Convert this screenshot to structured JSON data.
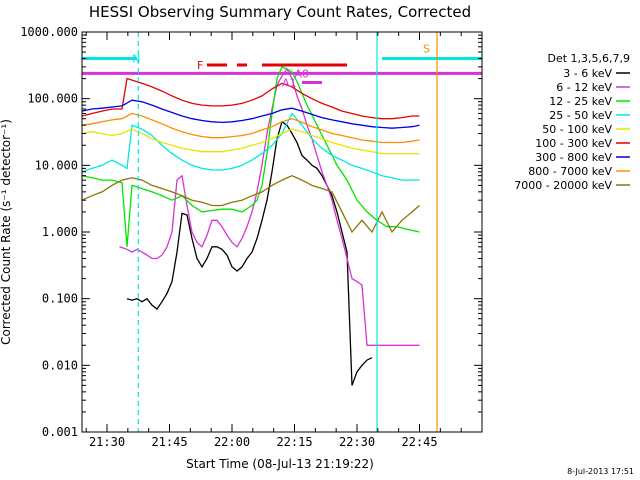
{
  "chart_data": {
    "type": "line",
    "title": "HESSI Observing Summary Count Rates, Corrected",
    "xlabel": "Start Time (08-Jul-13 21:19:22)",
    "ylabel": "Corrected Count Rate (s⁻¹ detector⁻¹)",
    "y_scale": "log",
    "ylim": [
      0.001,
      1000
    ],
    "xlim_minutes": [
      21.4,
      23.0
    ],
    "x_tick_labels": [
      "21:30",
      "21:45",
      "22:00",
      "22:15",
      "22:30",
      "22:45"
    ],
    "y_tick_labels": [
      "1000.000",
      "100.000",
      "10.000",
      "1.000",
      "0.100",
      "0.010",
      "0.001"
    ],
    "legend_header": "Det 1,3,5,6,7,9",
    "legend_placement": "right",
    "timestamp": "8-Jul-2013 17:51",
    "series": [
      {
        "name": "3 - 6 keV",
        "color": "#000000",
        "x": [
          21.58,
          21.6,
          21.62,
          21.64,
          21.66,
          21.68,
          21.7,
          21.72,
          21.74,
          21.76,
          21.78,
          21.8,
          21.82,
          21.84,
          21.86,
          21.88,
          21.9,
          21.92,
          21.94,
          21.96,
          21.98,
          22.0,
          22.02,
          22.04,
          22.06,
          22.08,
          22.1,
          22.12,
          22.14,
          22.16,
          22.18,
          22.2,
          22.22,
          22.24,
          22.26,
          22.28,
          22.3,
          22.32,
          22.34,
          22.36,
          22.38,
          22.4,
          22.42,
          22.44,
          22.46,
          22.48,
          22.5,
          22.52,
          22.54,
          22.56
        ],
        "y": [
          0.1,
          0.095,
          0.1,
          0.09,
          0.1,
          0.08,
          0.07,
          0.09,
          0.12,
          0.18,
          0.5,
          1.9,
          1.8,
          0.8,
          0.4,
          0.3,
          0.4,
          0.6,
          0.6,
          0.55,
          0.45,
          0.3,
          0.26,
          0.3,
          0.4,
          0.5,
          0.8,
          1.5,
          3,
          8,
          25,
          45,
          40,
          30,
          22,
          14,
          12,
          10,
          9,
          7,
          5,
          3.5,
          2,
          1,
          0.5,
          0.005,
          0.008,
          0.01,
          0.012,
          0.013
        ]
      },
      {
        "name": "6 - 12 keV",
        "color": "#d633d6",
        "x": [
          21.55,
          21.58,
          21.6,
          21.62,
          21.64,
          21.66,
          21.68,
          21.7,
          21.72,
          21.74,
          21.76,
          21.78,
          21.8,
          21.82,
          21.84,
          21.86,
          21.88,
          21.9,
          21.92,
          21.94,
          21.96,
          21.98,
          22.0,
          22.02,
          22.04,
          22.06,
          22.08,
          22.1,
          22.12,
          22.14,
          22.16,
          22.18,
          22.2,
          22.22,
          22.24,
          22.26,
          22.28,
          22.3,
          22.32,
          22.34,
          22.36,
          22.38,
          22.4,
          22.42,
          22.44,
          22.46,
          22.48,
          22.5,
          22.52,
          22.54,
          22.56,
          22.58,
          22.6,
          22.62,
          22.64,
          22.66,
          22.7,
          22.75
        ],
        "y": [
          0.6,
          0.55,
          0.5,
          0.55,
          0.5,
          0.45,
          0.4,
          0.4,
          0.45,
          0.6,
          1,
          6,
          7,
          2.5,
          1,
          0.7,
          0.6,
          0.9,
          1.5,
          1.5,
          1.2,
          0.9,
          0.7,
          0.6,
          0.8,
          1.2,
          2,
          4,
          10,
          30,
          70,
          160,
          220,
          280,
          200,
          110,
          70,
          40,
          25,
          14,
          8,
          5,
          3,
          1.5,
          0.8,
          0.4,
          0.2,
          0.18,
          0.16,
          0.02,
          0.02,
          0.02,
          0.02,
          0.02,
          0.02,
          0.02,
          0.02,
          0.02
        ]
      },
      {
        "name": "12 - 25 keV",
        "color": "#00e600",
        "x": [
          21.4,
          21.44,
          21.48,
          21.52,
          21.56,
          21.58,
          21.6,
          21.64,
          21.68,
          21.72,
          21.76,
          21.8,
          21.84,
          21.88,
          21.92,
          21.96,
          22.0,
          22.04,
          22.08,
          22.1,
          22.12,
          22.14,
          22.16,
          22.18,
          22.2,
          22.22,
          22.24,
          22.26,
          22.28,
          22.3,
          22.34,
          22.38,
          22.42,
          22.46,
          22.5,
          22.54,
          22.58,
          22.62,
          22.66,
          22.7,
          22.75
        ],
        "y": [
          7,
          6.5,
          6,
          6,
          5.5,
          0.6,
          5,
          4.5,
          4,
          3.5,
          3,
          3.5,
          2.5,
          2,
          2.1,
          2.2,
          2.2,
          2,
          2.5,
          3,
          5,
          15,
          60,
          200,
          300,
          280,
          250,
          180,
          120,
          80,
          40,
          20,
          10,
          6,
          3,
          2,
          1.5,
          1.2,
          1.2,
          1.1,
          1
        ]
      },
      {
        "name": "25 - 50 keV",
        "color": "#00e6e6",
        "x": [
          21.4,
          21.44,
          21.48,
          21.52,
          21.56,
          21.58,
          21.6,
          21.64,
          21.68,
          21.72,
          21.76,
          21.8,
          21.84,
          21.88,
          21.92,
          21.96,
          22.0,
          22.04,
          22.08,
          22.12,
          22.16,
          22.2,
          22.24,
          22.28,
          22.32,
          22.36,
          22.4,
          22.44,
          22.48,
          22.52,
          22.56,
          22.6,
          22.64,
          22.68,
          22.72,
          22.75
        ],
        "y": [
          8,
          9,
          10,
          12,
          10,
          9,
          40,
          35,
          28,
          20,
          15,
          12,
          10,
          9,
          8.5,
          8.5,
          9,
          10,
          12,
          15,
          20,
          30,
          60,
          40,
          25,
          18,
          14,
          12,
          10,
          9,
          8,
          7,
          6.5,
          6,
          6,
          6
        ]
      },
      {
        "name": "50 - 100 keV",
        "color": "#e6e600",
        "x": [
          21.4,
          21.44,
          21.48,
          21.52,
          21.56,
          21.6,
          21.64,
          21.68,
          21.72,
          21.76,
          21.8,
          21.84,
          21.88,
          21.92,
          21.96,
          22.0,
          22.04,
          22.08,
          22.12,
          22.16,
          22.2,
          22.24,
          22.28,
          22.32,
          22.36,
          22.4,
          22.44,
          22.48,
          22.52,
          22.56,
          22.6,
          22.64,
          22.68,
          22.72,
          22.75
        ],
        "y": [
          30,
          32,
          30,
          28,
          30,
          35,
          30,
          25,
          22,
          20,
          18,
          17,
          16,
          16,
          16,
          17,
          18,
          20,
          22,
          25,
          30,
          35,
          32,
          28,
          25,
          22,
          20,
          18,
          17,
          16,
          15,
          15,
          15,
          15,
          15
        ]
      },
      {
        "name": "100 - 300 keV",
        "color": "#e60000",
        "x": [
          21.4,
          21.44,
          21.48,
          21.52,
          21.56,
          21.58,
          21.6,
          21.64,
          21.68,
          21.72,
          21.76,
          21.8,
          21.84,
          21.88,
          21.92,
          21.96,
          22.0,
          22.04,
          22.08,
          22.12,
          22.16,
          22.2,
          22.24,
          22.28,
          22.32,
          22.36,
          22.4,
          22.44,
          22.48,
          22.52,
          22.56,
          22.6,
          22.64,
          22.68,
          22.72,
          22.75
        ],
        "y": [
          55,
          60,
          65,
          70,
          70,
          200,
          190,
          170,
          150,
          130,
          110,
          95,
          85,
          80,
          78,
          78,
          80,
          85,
          95,
          110,
          140,
          170,
          150,
          120,
          100,
          85,
          75,
          65,
          60,
          55,
          52,
          50,
          50,
          52,
          55,
          55
        ]
      },
      {
        "name": "300 - 800 keV",
        "color": "#0000e6",
        "x": [
          21.4,
          21.44,
          21.48,
          21.52,
          21.56,
          21.6,
          21.64,
          21.68,
          21.72,
          21.76,
          21.8,
          21.84,
          21.88,
          21.92,
          21.96,
          22.0,
          22.04,
          22.08,
          22.12,
          22.16,
          22.2,
          22.24,
          22.28,
          22.32,
          22.36,
          22.4,
          22.44,
          22.48,
          22.52,
          22.56,
          22.6,
          22.64,
          22.68,
          22.72,
          22.75
        ],
        "y": [
          65,
          70,
          72,
          75,
          78,
          95,
          90,
          80,
          70,
          62,
          55,
          50,
          47,
          45,
          44,
          45,
          47,
          50,
          55,
          60,
          68,
          72,
          65,
          58,
          52,
          48,
          45,
          42,
          40,
          38,
          37,
          36,
          37,
          38,
          40
        ]
      },
      {
        "name": "800 - 7000 keV",
        "color": "#ff8c00",
        "x": [
          21.4,
          21.44,
          21.48,
          21.52,
          21.56,
          21.6,
          21.64,
          21.68,
          21.72,
          21.76,
          21.8,
          21.84,
          21.88,
          21.92,
          21.96,
          22.0,
          22.04,
          22.08,
          22.12,
          22.16,
          22.2,
          22.24,
          22.28,
          22.32,
          22.36,
          22.4,
          22.44,
          22.48,
          22.52,
          22.56,
          22.6,
          22.64,
          22.68,
          22.72,
          22.75
        ],
        "y": [
          40,
          42,
          45,
          48,
          50,
          60,
          55,
          48,
          42,
          36,
          32,
          29,
          27,
          26,
          26,
          27,
          28,
          30,
          34,
          38,
          45,
          50,
          44,
          38,
          34,
          30,
          28,
          26,
          24,
          23,
          22,
          22,
          22,
          23,
          24
        ]
      },
      {
        "name": "7000 - 20000 keV",
        "color": "#8b7500",
        "x": [
          21.4,
          21.44,
          21.48,
          21.52,
          21.56,
          21.6,
          21.64,
          21.68,
          21.72,
          21.76,
          21.8,
          21.84,
          21.88,
          21.92,
          21.96,
          22.0,
          22.04,
          22.08,
          22.12,
          22.16,
          22.2,
          22.24,
          22.28,
          22.32,
          22.36,
          22.4,
          22.44,
          22.48,
          22.52,
          22.56,
          22.6,
          22.64,
          22.68,
          22.72,
          22.75
        ],
        "y": [
          3,
          3.5,
          4,
          5,
          6,
          6.5,
          6,
          5,
          4.5,
          4,
          3.5,
          3,
          2.8,
          2.5,
          2.5,
          2.8,
          3,
          3.5,
          4,
          5,
          6,
          7,
          6,
          5,
          4.5,
          4,
          2,
          1,
          1.5,
          1,
          2,
          1,
          1.5,
          2,
          2.5
        ]
      }
    ],
    "annotations": [
      {
        "label": "N",
        "x": 21.625,
        "color": "#00e6e6",
        "line": "dashed"
      },
      {
        "label": "S",
        "x": 22.82,
        "color": "#ff8c00",
        "line": "solid"
      },
      {
        "label": "F",
        "color": "#e60000"
      },
      {
        "label": "A0",
        "color": "#d633d6"
      },
      {
        "label": "A1",
        "color": "#d633d6"
      }
    ],
    "bars": [
      {
        "color": "#00e6e6",
        "y": 400,
        "segments": [
          [
            21.4,
            21.62
          ],
          [
            22.6,
            23.0
          ]
        ]
      },
      {
        "color": "#e60000",
        "y": 320,
        "segments": [
          [
            21.9,
            21.98
          ],
          [
            22.02,
            22.06
          ],
          [
            22.12,
            22.46
          ]
        ]
      },
      {
        "color": "#d633d6",
        "y": 240,
        "segments": [
          [
            21.4,
            23.0
          ]
        ]
      },
      {
        "color": "#d633d6",
        "y": 175,
        "segments": [
          [
            22.28,
            22.36
          ]
        ]
      }
    ],
    "vertical_lines": [
      {
        "x": 21.625,
        "color": "#00e6e6",
        "style": "dashed"
      },
      {
        "x": 22.58,
        "color": "#00e6e6",
        "style": "solid"
      },
      {
        "x": 22.82,
        "color": "#ff8c00",
        "style": "solid"
      }
    ]
  }
}
